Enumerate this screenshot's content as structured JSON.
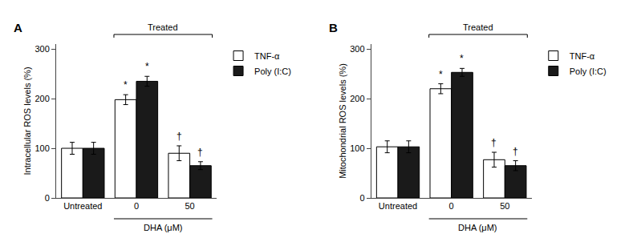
{
  "chart_data": [
    {
      "type": "bar",
      "label": "A",
      "ylabel": "Intracellular ROS levels (%)",
      "categories": [
        "Untreated",
        "0",
        "50"
      ],
      "series": [
        {
          "name": "TNF-α",
          "color": "#ffffff",
          "values": [
            100,
            198,
            90
          ],
          "errors": [
            12,
            10,
            15
          ],
          "annotations": [
            null,
            "*",
            "†"
          ]
        },
        {
          "name": "Poly (I:C)",
          "color": "#1a1a1a",
          "values": [
            100,
            235,
            65
          ],
          "errors": [
            12,
            10,
            8
          ],
          "annotations": [
            null,
            "*",
            "†"
          ]
        }
      ],
      "ylim": [
        0,
        310
      ],
      "yticks": [
        0,
        100,
        200,
        300
      ],
      "grid": false,
      "legend": "upper right",
      "brackets": [
        {
          "label": "DHA (μM)",
          "from": "0",
          "to": "50",
          "side": "bottom"
        },
        {
          "label": "Treated",
          "from": "0",
          "to": "50",
          "side": "top"
        }
      ]
    },
    {
      "type": "bar",
      "label": "B",
      "ylabel": "Mitochondrial ROS levels (%)",
      "categories": [
        "Untreated",
        "0",
        "50"
      ],
      "series": [
        {
          "name": "TNF-α",
          "color": "#ffffff",
          "values": [
            103,
            220,
            77
          ],
          "errors": [
            12,
            10,
            15
          ],
          "annotations": [
            null,
            "*",
            "†"
          ]
        },
        {
          "name": "Poly (I:C)",
          "color": "#1a1a1a",
          "values": [
            103,
            253,
            65
          ],
          "errors": [
            12,
            8,
            10
          ],
          "annotations": [
            null,
            "*",
            "†"
          ]
        }
      ],
      "ylim": [
        0,
        310
      ],
      "yticks": [
        0,
        100,
        200,
        300
      ],
      "grid": false,
      "legend": "upper right",
      "brackets": [
        {
          "label": "DHA (μM)",
          "from": "0",
          "to": "50",
          "side": "bottom"
        },
        {
          "label": "Treated",
          "from": "0",
          "to": "50",
          "side": "top"
        }
      ]
    }
  ]
}
